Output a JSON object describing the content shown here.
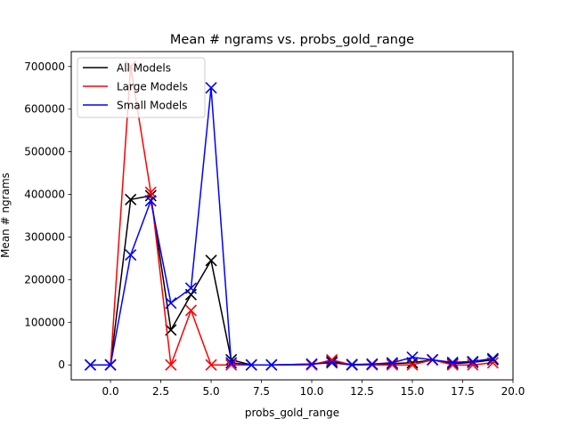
{
  "chart_data": {
    "type": "line",
    "title": "Mean # ngrams vs. probs_gold_range",
    "xlabel": "probs_gold_range",
    "ylabel": "Mean # ngrams",
    "xlim": [
      -1.95,
      20
    ],
    "ylim": [
      -35000,
      735000
    ],
    "xticks": [
      0.0,
      2.5,
      5.0,
      7.5,
      10.0,
      12.5,
      15.0,
      17.5,
      20.0
    ],
    "xtick_labels": [
      "0.0",
      "2.5",
      "5.0",
      "7.5",
      "10.0",
      "12.5",
      "15.0",
      "17.5",
      "20.0"
    ],
    "yticks": [
      0,
      100000,
      200000,
      300000,
      400000,
      500000,
      600000,
      700000
    ],
    "ytick_labels": [
      "0",
      "100000",
      "200000",
      "300000",
      "400000",
      "500000",
      "600000",
      "700000"
    ],
    "grid": false,
    "legend_position": "top-left",
    "marker": "x",
    "series": [
      {
        "name": "All Models",
        "color": "#000000",
        "points": [
          [
            -1,
            0
          ],
          [
            0,
            0
          ],
          [
            1,
            388000
          ],
          [
            2,
            397000
          ],
          [
            3,
            82000
          ],
          [
            4,
            165000
          ],
          [
            5,
            245000
          ],
          [
            6,
            12000
          ],
          [
            7,
            0
          ],
          [
            8,
            0
          ],
          [
            10,
            2000
          ],
          [
            11,
            8000
          ],
          [
            12,
            1000
          ],
          [
            13,
            2000
          ],
          [
            14,
            3000
          ],
          [
            15,
            5000
          ],
          [
            16,
            12000
          ],
          [
            17,
            3000
          ],
          [
            18,
            6000
          ],
          [
            19,
            12000
          ]
        ]
      },
      {
        "name": "Large Models",
        "color": "#ff0000",
        "points": [
          [
            0,
            0
          ],
          [
            1,
            700000
          ],
          [
            2,
            405000
          ],
          [
            3,
            0
          ],
          [
            4,
            128000
          ],
          [
            5,
            0
          ],
          [
            6,
            0
          ],
          [
            10,
            0
          ],
          [
            11,
            12000
          ],
          [
            12,
            0
          ],
          [
            13,
            0
          ],
          [
            14,
            0
          ],
          [
            15,
            0
          ],
          [
            16,
            12000
          ],
          [
            17,
            0
          ],
          [
            18,
            0
          ],
          [
            19,
            5000
          ]
        ]
      },
      {
        "name": "Small Models",
        "color": "#0000ff",
        "points": [
          [
            -1,
            0
          ],
          [
            0,
            0
          ],
          [
            1,
            258000
          ],
          [
            2,
            385000
          ],
          [
            3,
            145000
          ],
          [
            4,
            180000
          ],
          [
            5,
            650000
          ],
          [
            6,
            5000
          ],
          [
            7,
            0
          ],
          [
            8,
            0
          ],
          [
            10,
            2000
          ],
          [
            11,
            5000
          ],
          [
            12,
            0
          ],
          [
            13,
            2000
          ],
          [
            14,
            5000
          ],
          [
            15,
            18000
          ],
          [
            16,
            12000
          ],
          [
            17,
            6000
          ],
          [
            18,
            8000
          ],
          [
            19,
            15000
          ]
        ]
      }
    ]
  }
}
